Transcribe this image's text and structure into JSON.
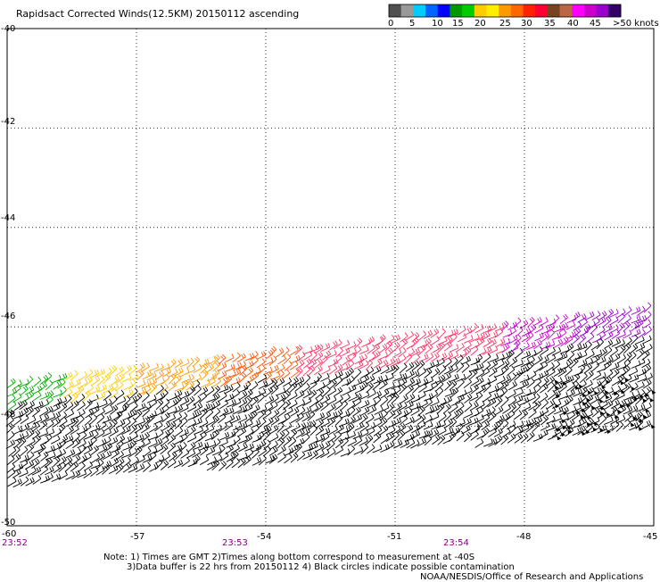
{
  "title": "Rapidsact Corrected Winds(12.5KM) 20150112 ascending",
  "legend": {
    "unit_label": ">50 knots",
    "labels": [
      "0",
      "5",
      "10",
      "15",
      "20",
      "25",
      "30",
      "35",
      "40",
      "45"
    ],
    "colors": [
      "#505050",
      "#999999",
      "#00ccff",
      "#0066ff",
      "#0000ff",
      "#009900",
      "#00cc00",
      "#ffcc00",
      "#ffee00",
      "#ff9900",
      "#ff6600",
      "#ff2200",
      "#ff0033",
      "#774422",
      "#bb6644",
      "#ff00ff",
      "#cc00cc",
      "#9900cc",
      "#330066"
    ]
  },
  "axes": {
    "lon_labels": [
      "-60",
      "-57",
      "-54",
      "-51",
      "-48",
      "-45"
    ],
    "lon_values": [
      -60,
      -57,
      -54,
      -51,
      -48,
      -45
    ],
    "lat_labels": [
      "-40",
      "-42",
      "-44",
      "-46",
      "-48",
      "-50"
    ],
    "lat_values": [
      -40,
      -42,
      -44,
      -46,
      -48,
      -50
    ]
  },
  "times": [
    "23:52",
    "23:53",
    "23:54"
  ],
  "notes": {
    "line1": "Note: 1) Times are GMT 2)Times along bottom correspond to measurement at -40S",
    "line2": "3)Data buffer is 22 hrs from 20150112 4) Black circles indicate possible contamination",
    "line3": "NOAA/NESDIS/Office of Research and Applications"
  },
  "wind_colors": {
    "black": "#000000",
    "green": "#00aa00",
    "yellow": "#ffcc00",
    "orange": "#ff9900",
    "red_orange": "#ff5500",
    "pink": "#ff3366",
    "magenta": "#cc00cc",
    "purple": "#9900cc"
  }
}
